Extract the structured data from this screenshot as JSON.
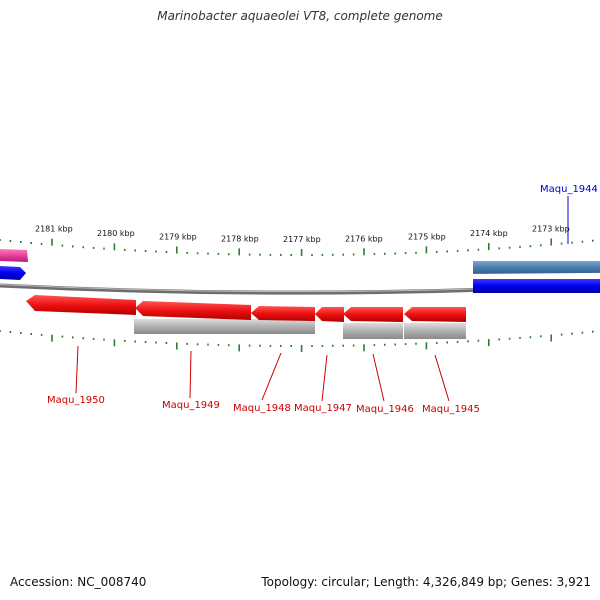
{
  "title": "Marinobacter aquaeolei VT8, complete genome",
  "footer": {
    "accession": "Accession: NC_008740",
    "summary": "Topology: circular; Length: 4,326,849 bp; Genes: 3,921"
  },
  "colors": {
    "reverse_gene": "#ee1111",
    "forward_gene": "#0000ee",
    "forward_gene_steel": "#4a7fb0",
    "pink_gene": "#e8409a",
    "grey_feature": "#b0b0b0",
    "backbone": "#777777",
    "tick": "#2e7d32",
    "reverse_label": "#cc0000",
    "forward_label": "#0000cc"
  },
  "scale": {
    "unit": "kbp",
    "labels": [
      "2181 kbp",
      "2180 kbp",
      "2179 kbp",
      "2178 kbp",
      "2177 kbp",
      "2176 kbp",
      "2175 kbp",
      "2174 kbp",
      "2173 kbp"
    ]
  },
  "genes": {
    "forward": [
      {
        "label": "Maqu_1944"
      }
    ],
    "reverse": [
      {
        "label": "Maqu_1950"
      },
      {
        "label": "Maqu_1949"
      },
      {
        "label": "Maqu_1948"
      },
      {
        "label": "Maqu_1947"
      },
      {
        "label": "Maqu_1946"
      },
      {
        "label": "Maqu_1945"
      }
    ]
  }
}
